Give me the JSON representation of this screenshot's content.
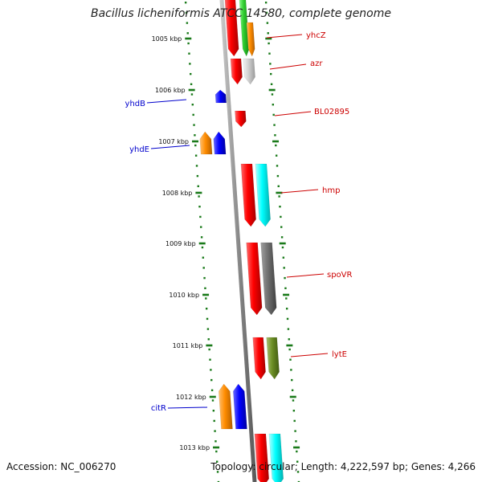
{
  "title": "Bacillus licheniformis ATCC 14580, complete genome",
  "accession": "Accession: NC_006270",
  "topology": "Topology: circular; Length: 4,222,597 bp; Genes: 4,266",
  "colors": {
    "backbone": "#8a8a8a",
    "tick": "#1a7a1a",
    "forward_label": "#cc0000",
    "reverse_label": "#0000cc"
  },
  "ticks": [
    "1005 kbp",
    "1006 kbp",
    "1007 kbp",
    "1008 kbp",
    "1009 kbp",
    "1010 kbp",
    "1011 kbp",
    "1012 kbp",
    "1013 kbp"
  ],
  "genes": [
    {
      "name": "yhcZ",
      "strand": "forward"
    },
    {
      "name": "azr",
      "strand": "forward"
    },
    {
      "name": "BL02895",
      "strand": "forward"
    },
    {
      "name": "hmp",
      "strand": "forward"
    },
    {
      "name": "spoVR",
      "strand": "forward"
    },
    {
      "name": "lytE",
      "strand": "forward"
    },
    {
      "name": "yhdB",
      "strand": "reverse"
    },
    {
      "name": "yhdE",
      "strand": "reverse"
    },
    {
      "name": "citR",
      "strand": "reverse"
    }
  ]
}
